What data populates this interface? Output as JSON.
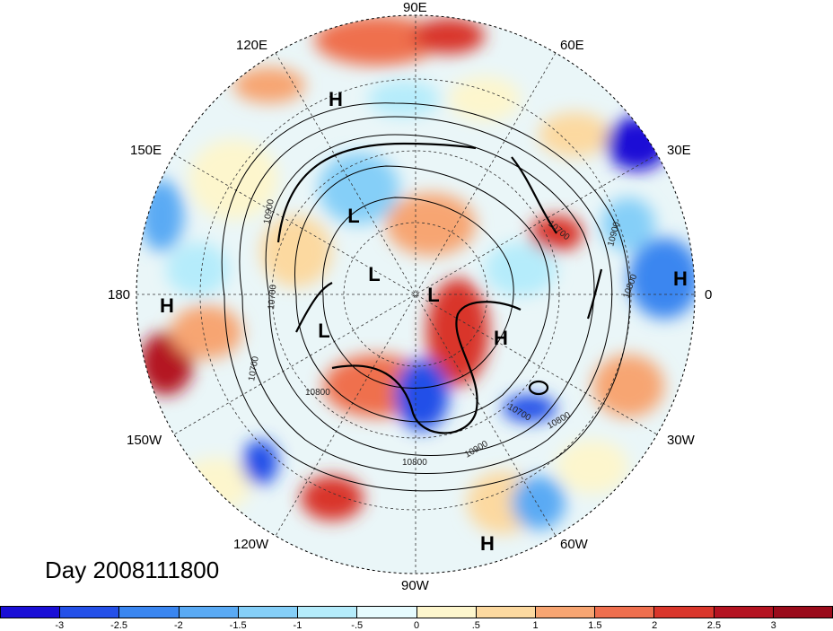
{
  "title": "Day 2008111800",
  "longitude_labels": {
    "lon_90E": "90E",
    "lon_120E": "120E",
    "lon_60E": "60E",
    "lon_150E": "150E",
    "lon_30E": "30E",
    "lon_180": "180",
    "lon_0": "0",
    "lon_150W": "150W",
    "lon_30W": "30W",
    "lon_120W": "120W",
    "lon_60W": "60W",
    "lon_90W": "90W"
  },
  "pressure_centers": [
    {
      "type": "H",
      "id": "h-asia"
    },
    {
      "type": "H",
      "id": "h-dateline"
    },
    {
      "type": "H",
      "id": "h-europe"
    },
    {
      "type": "H",
      "id": "h-atlantic"
    },
    {
      "type": "H",
      "id": "h-south-america"
    },
    {
      "type": "L",
      "id": "l-siberia"
    },
    {
      "type": "L",
      "id": "l-arctic-1"
    },
    {
      "type": "L",
      "id": "l-arctic-2"
    },
    {
      "type": "L",
      "id": "l-pacific"
    }
  ],
  "contour_labels": [
    "10900",
    "10700",
    "10700",
    "10800",
    "10700",
    "10900",
    "10800",
    "10800",
    "10900",
    "10700",
    "10800"
  ],
  "colorbar": {
    "ticks": [
      "-3",
      "-2.5",
      "-2",
      "-1.5",
      "-1",
      "-.5",
      "0",
      ".5",
      "1",
      "1.5",
      "2",
      "2.5",
      "3"
    ],
    "colors": [
      "#1a0fd6",
      "#2450e8",
      "#3a86f0",
      "#5aaaf4",
      "#85cff8",
      "#b5ecfb",
      "#e6fbfe",
      "#fdf6cd",
      "#fcd9a0",
      "#f7a572",
      "#ef6f4e",
      "#d9362b",
      "#b41321",
      "#9a0b1b"
    ]
  }
}
